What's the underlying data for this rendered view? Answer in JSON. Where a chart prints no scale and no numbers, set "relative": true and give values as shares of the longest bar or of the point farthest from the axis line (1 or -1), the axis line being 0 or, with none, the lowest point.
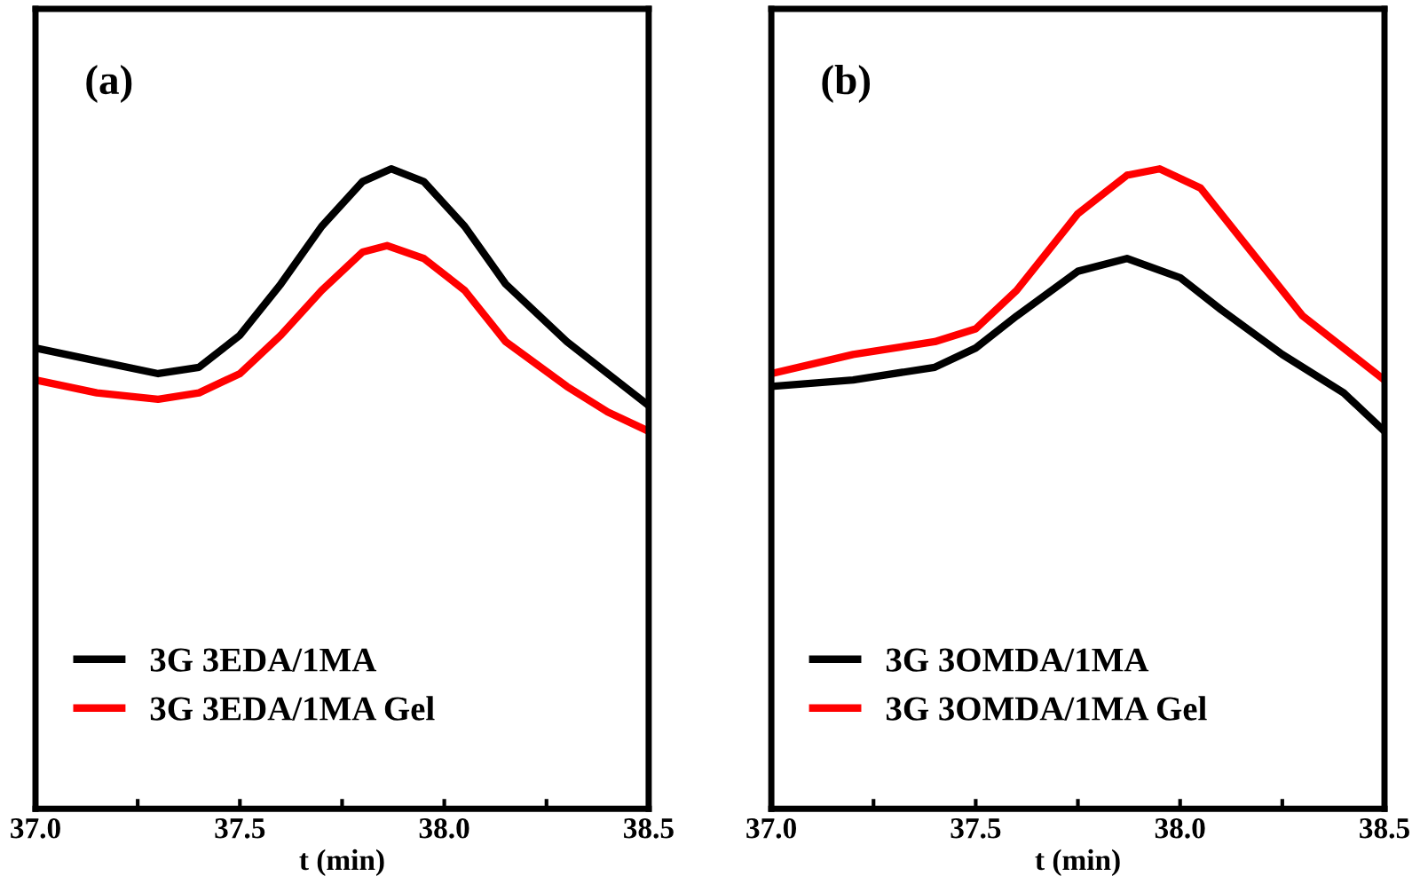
{
  "chart_data": [
    {
      "type": "line",
      "relative": true,
      "xlabel": "t (min)",
      "annotations": [
        "(a)"
      ],
      "xlim": [
        37.0,
        38.5
      ],
      "xticks": [
        {
          "value": 37.0,
          "label": "37.0"
        },
        {
          "value": 37.25,
          "label": null
        },
        {
          "value": 37.5,
          "label": "37.5"
        },
        {
          "value": 37.75,
          "label": null
        },
        {
          "value": 38.0,
          "label": "38.0"
        },
        {
          "value": 38.25,
          "label": null
        },
        {
          "value": 38.5,
          "label": "38.5"
        }
      ],
      "tick_labels": "x",
      "legend": "bottom left",
      "grid": false,
      "series": [
        {
          "name": "3G 3EDA/1MA",
          "color": "#000000",
          "x": [
            37.0,
            37.15,
            37.3,
            37.4,
            37.5,
            37.6,
            37.7,
            37.8,
            37.87,
            37.95,
            38.05,
            38.15,
            38.3,
            38.4,
            38.5
          ],
          "values": [
            0.72,
            0.7,
            0.68,
            0.69,
            0.74,
            0.82,
            0.91,
            0.98,
            1.0,
            0.98,
            0.91,
            0.82,
            0.73,
            0.68,
            0.63
          ]
        },
        {
          "name": "3G 3EDA/1MA Gel",
          "color": "#ff0000",
          "x": [
            37.0,
            37.15,
            37.3,
            37.4,
            37.5,
            37.6,
            37.7,
            37.8,
            37.86,
            37.95,
            38.05,
            38.15,
            38.3,
            38.4,
            38.5
          ],
          "values": [
            0.67,
            0.65,
            0.64,
            0.65,
            0.68,
            0.74,
            0.81,
            0.87,
            0.88,
            0.86,
            0.81,
            0.73,
            0.66,
            0.62,
            0.59
          ]
        }
      ]
    },
    {
      "type": "line",
      "relative": true,
      "xlabel": "t (min)",
      "annotations": [
        "(b)"
      ],
      "xlim": [
        37.0,
        38.5
      ],
      "xticks": [
        {
          "value": 37.0,
          "label": "37.0"
        },
        {
          "value": 37.25,
          "label": null
        },
        {
          "value": 37.5,
          "label": "37.5"
        },
        {
          "value": 37.75,
          "label": null
        },
        {
          "value": 38.0,
          "label": "38.0"
        },
        {
          "value": 38.25,
          "label": null
        },
        {
          "value": 38.5,
          "label": "38.5"
        }
      ],
      "tick_labels": "x",
      "legend": "bottom left",
      "grid": false,
      "series": [
        {
          "name": "3G 3OMDA/1MA",
          "color": "#000000",
          "x": [
            37.0,
            37.2,
            37.4,
            37.5,
            37.6,
            37.75,
            37.87,
            38.0,
            38.1,
            38.25,
            38.4,
            38.5
          ],
          "values": [
            0.66,
            0.67,
            0.69,
            0.72,
            0.77,
            0.84,
            0.86,
            0.83,
            0.78,
            0.71,
            0.65,
            0.59
          ]
        },
        {
          "name": "3G 3OMDA/1MA Gel",
          "color": "#ff0000",
          "x": [
            37.0,
            37.2,
            37.4,
            37.5,
            37.6,
            37.75,
            37.87,
            37.95,
            38.05,
            38.15,
            38.3,
            38.5
          ],
          "values": [
            0.68,
            0.71,
            0.73,
            0.75,
            0.81,
            0.93,
            0.99,
            1.0,
            0.97,
            0.89,
            0.77,
            0.67
          ]
        }
      ]
    }
  ]
}
